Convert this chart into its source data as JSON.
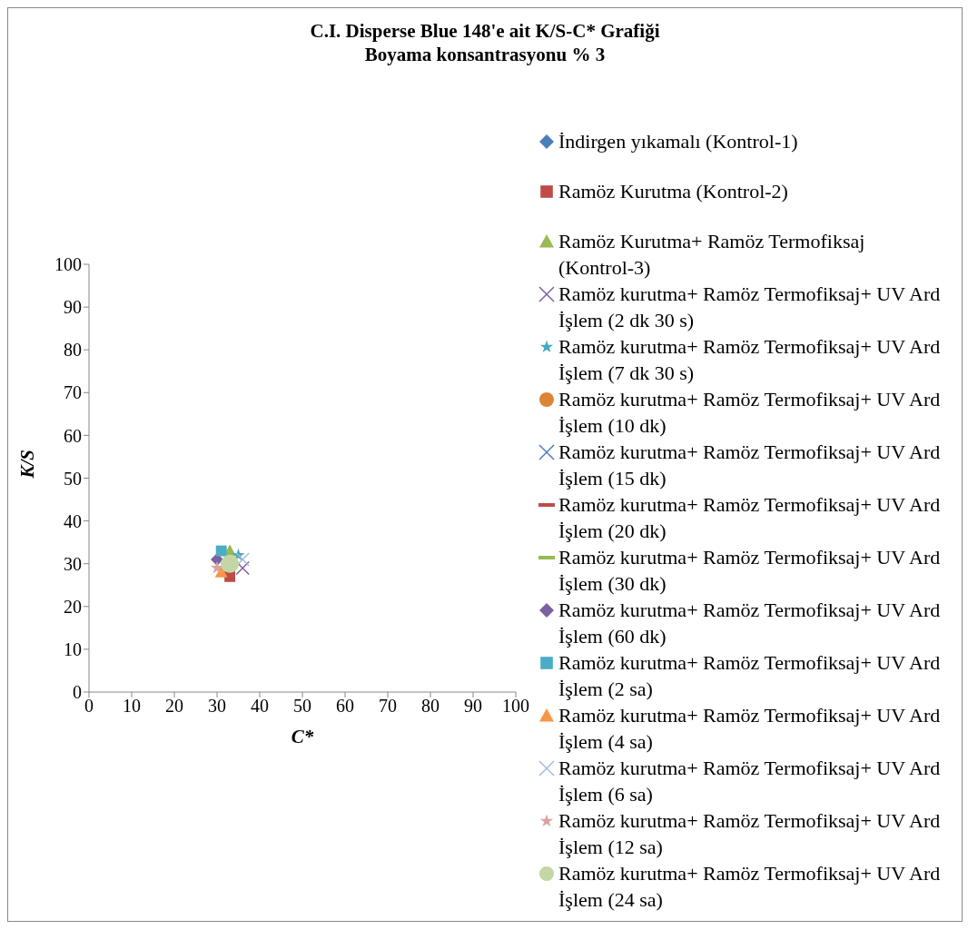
{
  "chart_data": {
    "type": "scatter",
    "title": "C.I. Disperse Blue 148'e ait K/S-C* Grafiği",
    "subtitle": "Boyama konsantrasyonu % 3",
    "xlabel": "C*",
    "ylabel": "K/S",
    "xlim": [
      0,
      100
    ],
    "xticks": [
      0,
      10,
      20,
      30,
      40,
      50,
      60,
      70,
      80,
      90,
      100
    ],
    "ylim": [
      0,
      100
    ],
    "yticks": [
      0,
      10,
      20,
      30,
      40,
      50,
      60,
      70,
      80,
      90,
      100
    ],
    "legend": "right",
    "series": [
      {
        "name": "İndirgen yıkamalı (Kontrol-1)",
        "color": "#4a7ebb",
        "marker": "diamond",
        "x": [
          null
        ],
        "values": [
          null
        ]
      },
      {
        "name": "Ramöz Kurutma (Kontrol-2)",
        "color": "#be4b48",
        "marker": "square",
        "x": [
          33
        ],
        "values": [
          27
        ]
      },
      {
        "name": "Ramöz Kurutma+ Ramöz Termofiksaj (Kontrol-3)",
        "color": "#98b954",
        "marker": "triangle",
        "x": [
          33
        ],
        "values": [
          33
        ]
      },
      {
        "name": "Ramöz kurutma+ Ramöz Termofiksaj+ UV Ard İşlem (2 dk 30 s)",
        "color": "#7d60a0",
        "marker": "cross",
        "x": [
          36
        ],
        "values": [
          29
        ]
      },
      {
        "name": "Ramöz kurutma+ Ramöz Termofiksaj+ UV Ard İşlem (7 dk 30 s)",
        "color": "#46aac5",
        "marker": "star",
        "x": [
          35
        ],
        "values": [
          32
        ]
      },
      {
        "name": "Ramöz kurutma+ Ramöz Termofiksaj+ UV Ard İşlem (10 dk)",
        "color": "#dc8537",
        "marker": "circle",
        "x": [
          null
        ],
        "values": [
          null
        ]
      },
      {
        "name": "Ramöz kurutma+ Ramöz Termofiksaj+ UV Ard İşlem (15 dk)",
        "color": "#4a7ebb",
        "marker": "cross",
        "x": [
          null
        ],
        "values": [
          null
        ]
      },
      {
        "name": "Ramöz kurutma+ Ramöz Termofiksaj+ UV Ard İşlem (20 dk)",
        "color": "#be4b48",
        "marker": "none",
        "x": [
          null
        ],
        "values": [
          null
        ]
      },
      {
        "name": "Ramöz kurutma+ Ramöz Termofiksaj+ UV Ard İşlem (30 dk)",
        "color": "#98b954",
        "marker": "none",
        "x": [
          null
        ],
        "values": [
          null
        ]
      },
      {
        "name": "Ramöz kurutma+ Ramöz Termofiksaj+ UV Ard İşlem (60 dk)",
        "color": "#7d60a0",
        "marker": "diamond",
        "x": [
          30
        ],
        "values": [
          31
        ]
      },
      {
        "name": "Ramöz kurutma+ Ramöz Termofiksaj+ UV Ard İşlem (2 sa)",
        "color": "#4bacc6",
        "marker": "square",
        "x": [
          31
        ],
        "values": [
          33
        ]
      },
      {
        "name": "Ramöz kurutma+ Ramöz Termofiksaj+ UV Ard İşlem (4 sa)",
        "color": "#f79646",
        "marker": "triangle",
        "x": [
          31
        ],
        "values": [
          28
        ]
      },
      {
        "name": "Ramöz kurutma+ Ramöz Termofiksaj+ UV Ard İşlem (6 sa)",
        "color": "#a5b9dc",
        "marker": "cross",
        "x": [
          36
        ],
        "values": [
          31
        ]
      },
      {
        "name": "Ramöz kurutma+ Ramöz Termofiksaj+ UV Ard İşlem (12 sa)",
        "color": "#d9a3a2",
        "marker": "star",
        "x": [
          30
        ],
        "values": [
          29
        ]
      },
      {
        "name": "Ramöz kurutma+ Ramöz Termofiksaj+ UV Ard İşlem (24 sa)",
        "color": "#c3d6a4",
        "marker": "circle",
        "x": [
          33
        ],
        "values": [
          30
        ]
      }
    ]
  }
}
